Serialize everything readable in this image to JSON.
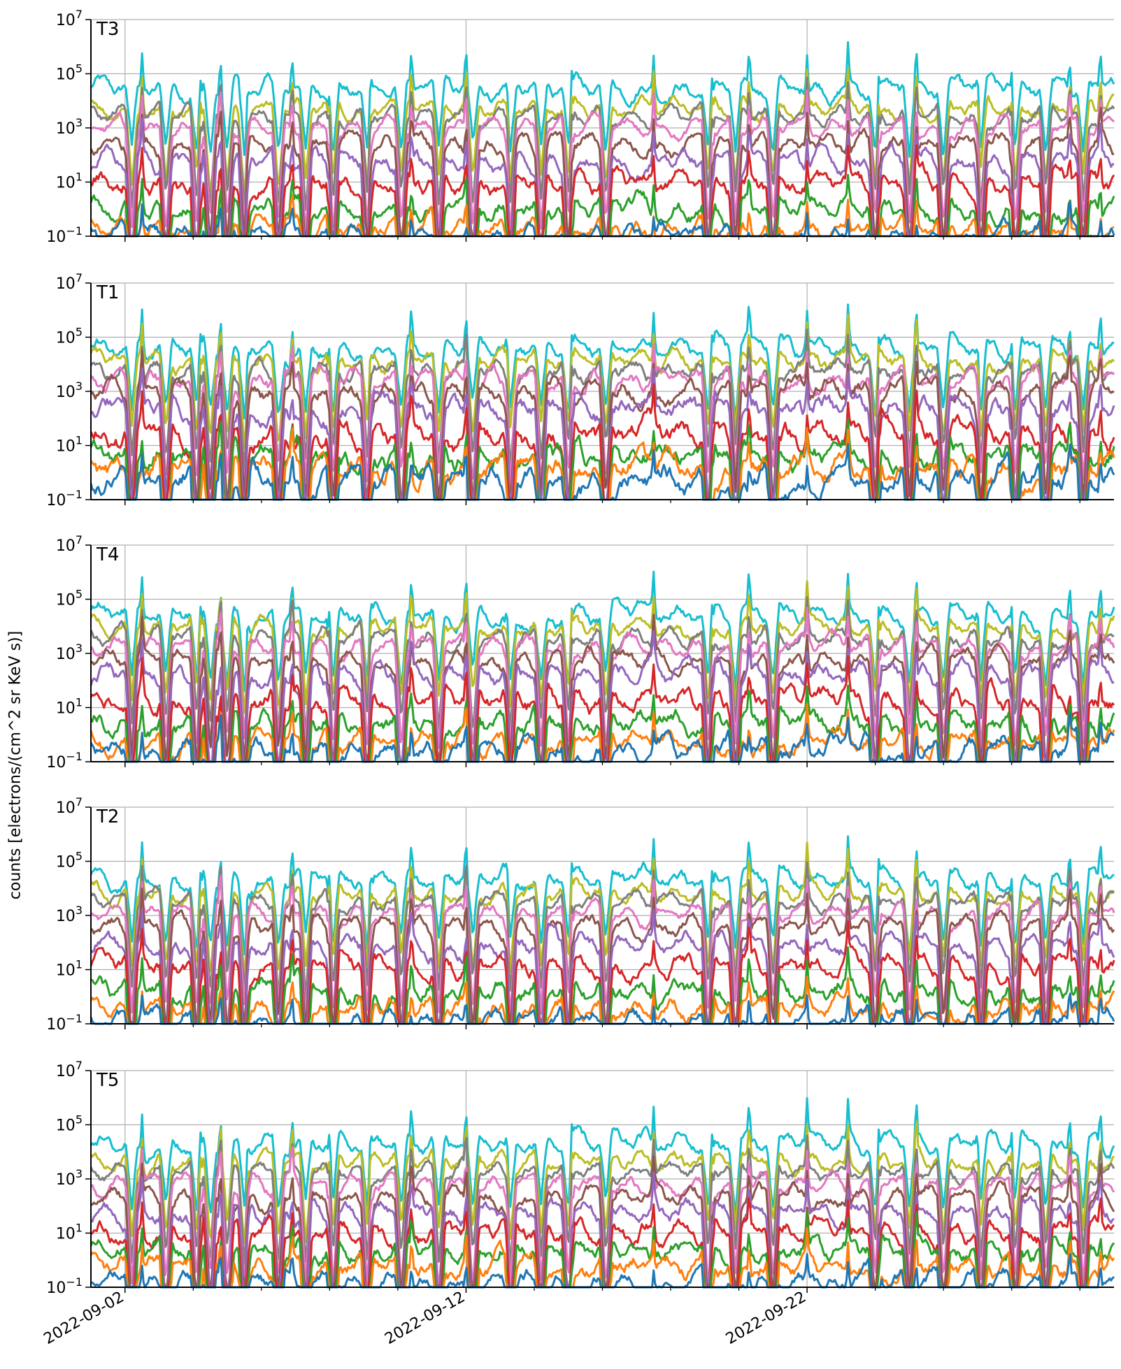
{
  "figure": {
    "ylabel": "counts [electrons/(cm^2 sr KeV s)]",
    "xticks": [
      "2022-09-02",
      "2022-09-12",
      "2022-09-22"
    ],
    "ytick_labels": [
      {
        "base": "10",
        "exp": "7"
      },
      {
        "base": "10",
        "exp": "5"
      },
      {
        "base": "10",
        "exp": "3"
      },
      {
        "base": "10",
        "exp": "1"
      },
      {
        "base": "10",
        "exp": "−1"
      }
    ]
  },
  "chart_data": [
    {
      "type": "line",
      "title": "T3",
      "yscale": "log",
      "ylim": [
        0.1,
        10000000
      ],
      "xlim": [
        "2022-09-01",
        "2022-10-01"
      ],
      "grid": true,
      "series": [
        {
          "color": "#17becf",
          "base": 30000,
          "variability": 0.45
        },
        {
          "color": "#bcbd22",
          "base": 6000,
          "variability": 0.4
        },
        {
          "color": "#7f7f7f",
          "base": 3000,
          "variability": 0.35
        },
        {
          "color": "#e377c2",
          "base": 900,
          "variability": 0.35
        },
        {
          "color": "#8c564b",
          "base": 250,
          "variability": 0.45
        },
        {
          "color": "#9467bd",
          "base": 60,
          "variability": 0.5
        },
        {
          "color": "#d62728",
          "base": 10,
          "variability": 0.55
        },
        {
          "color": "#2ca02c",
          "base": 1.2,
          "variability": 0.55
        },
        {
          "color": "#ff7f0e",
          "base": 0.2,
          "variability": 0.45
        },
        {
          "color": "#1f77b4",
          "base": 0.12,
          "variability": 0.5
        }
      ]
    },
    {
      "type": "line",
      "title": "T1",
      "yscale": "log",
      "ylim": [
        0.1,
        10000000
      ],
      "xlim": [
        "2022-09-01",
        "2022-10-01"
      ],
      "grid": true,
      "series": [
        {
          "color": "#17becf",
          "base": 40000,
          "variability": 0.45
        },
        {
          "color": "#bcbd22",
          "base": 15000,
          "variability": 0.45
        },
        {
          "color": "#7f7f7f",
          "base": 6000,
          "variability": 0.45
        },
        {
          "color": "#e377c2",
          "base": 2500,
          "variability": 0.5
        },
        {
          "color": "#8c564b",
          "base": 1000,
          "variability": 0.55
        },
        {
          "color": "#9467bd",
          "base": 250,
          "variability": 0.65
        },
        {
          "color": "#d62728",
          "base": 30,
          "variability": 0.7
        },
        {
          "color": "#2ca02c",
          "base": 5,
          "variability": 0.7
        },
        {
          "color": "#ff7f0e",
          "base": 1.5,
          "variability": 0.7
        },
        {
          "color": "#1f77b4",
          "base": 0.5,
          "variability": 0.7
        }
      ]
    },
    {
      "type": "line",
      "title": "T4",
      "yscale": "log",
      "ylim": [
        0.1,
        10000000
      ],
      "xlim": [
        "2022-09-01",
        "2022-10-01"
      ],
      "grid": true,
      "series": [
        {
          "color": "#17becf",
          "base": 30000,
          "variability": 0.45
        },
        {
          "color": "#bcbd22",
          "base": 10000,
          "variability": 0.4
        },
        {
          "color": "#7f7f7f",
          "base": 4000,
          "variability": 0.4
        },
        {
          "color": "#e377c2",
          "base": 1800,
          "variability": 0.4
        },
        {
          "color": "#8c564b",
          "base": 600,
          "variability": 0.45
        },
        {
          "color": "#9467bd",
          "base": 150,
          "variability": 0.55
        },
        {
          "color": "#d62728",
          "base": 20,
          "variability": 0.6
        },
        {
          "color": "#2ca02c",
          "base": 3,
          "variability": 0.6
        },
        {
          "color": "#ff7f0e",
          "base": 0.6,
          "variability": 0.55
        },
        {
          "color": "#1f77b4",
          "base": 0.3,
          "variability": 0.6
        }
      ]
    },
    {
      "type": "line",
      "title": "T2",
      "yscale": "log",
      "ylim": [
        0.1,
        10000000
      ],
      "xlim": [
        "2022-09-01",
        "2022-10-01"
      ],
      "grid": true,
      "series": [
        {
          "color": "#17becf",
          "base": 25000,
          "variability": 0.45
        },
        {
          "color": "#bcbd22",
          "base": 7000,
          "variability": 0.4
        },
        {
          "color": "#7f7f7f",
          "base": 3500,
          "variability": 0.35
        },
        {
          "color": "#e377c2",
          "base": 1200,
          "variability": 0.35
        },
        {
          "color": "#8c564b",
          "base": 400,
          "variability": 0.4
        },
        {
          "color": "#9467bd",
          "base": 90,
          "variability": 0.5
        },
        {
          "color": "#d62728",
          "base": 15,
          "variability": 0.55
        },
        {
          "color": "#2ca02c",
          "base": 2,
          "variability": 0.55
        },
        {
          "color": "#ff7f0e",
          "base": 0.4,
          "variability": 0.5
        },
        {
          "color": "#1f77b4",
          "base": 0.15,
          "variability": 0.5
        }
      ]
    },
    {
      "type": "line",
      "title": "T5",
      "yscale": "log",
      "ylim": [
        0.1,
        10000000
      ],
      "xlim": [
        "2022-09-01",
        "2022-10-01"
      ],
      "grid": true,
      "series": [
        {
          "color": "#17becf",
          "base": 20000,
          "variability": 0.45
        },
        {
          "color": "#bcbd22",
          "base": 5000,
          "variability": 0.4
        },
        {
          "color": "#7f7f7f",
          "base": 2000,
          "variability": 0.35
        },
        {
          "color": "#e377c2",
          "base": 600,
          "variability": 0.4
        },
        {
          "color": "#8c564b",
          "base": 200,
          "variability": 0.45
        },
        {
          "color": "#9467bd",
          "base": 60,
          "variability": 0.5
        },
        {
          "color": "#d62728",
          "base": 12,
          "variability": 0.55
        },
        {
          "color": "#2ca02c",
          "base": 2.5,
          "variability": 0.55
        },
        {
          "color": "#ff7f0e",
          "base": 0.6,
          "variability": 0.55
        },
        {
          "color": "#1f77b4",
          "base": 0.15,
          "variability": 0.5
        }
      ]
    }
  ]
}
